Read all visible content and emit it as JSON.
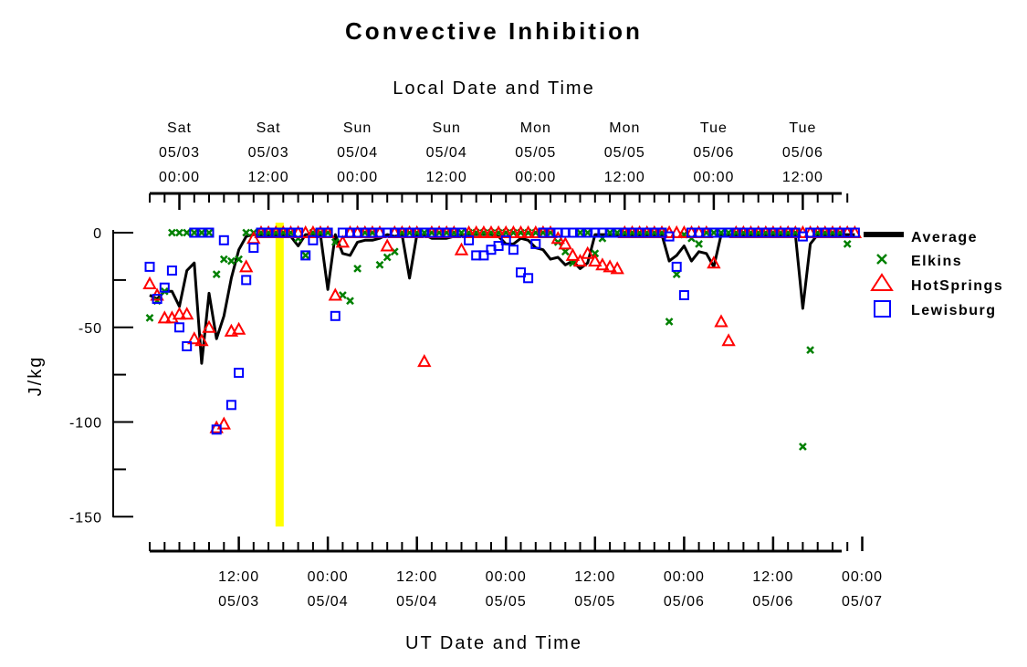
{
  "chart_data": {
    "type": "scatter",
    "title": "Convective Inhibition",
    "top_axis_label": "Local Date and Time",
    "xlabel": "UT Date and Time",
    "ylabel": "J/kg",
    "xlim": [
      "05/03 00:00 UT",
      "05/06 23:00 UT"
    ],
    "ylim": [
      -155,
      0
    ],
    "y_ticks": [
      0,
      -50,
      -100,
      -150
    ],
    "y_tick_labels": [
      "0",
      "-50",
      "-100",
      "-150"
    ],
    "x_tick_hours": [
      12,
      24,
      36,
      48,
      60,
      72,
      84,
      96
    ],
    "x_tick_labels": [
      [
        "12:00",
        "05/03"
      ],
      [
        "00:00",
        "05/04"
      ],
      [
        "12:00",
        "05/04"
      ],
      [
        "00:00",
        "05/05"
      ],
      [
        "12:00",
        "05/05"
      ],
      [
        "00:00",
        "05/06"
      ],
      [
        "12:00",
        "05/06"
      ],
      [
        "00:00",
        "05/07"
      ]
    ],
    "top_tick_hours": [
      4,
      16,
      28,
      40,
      52,
      64,
      76,
      88
    ],
    "top_tick_labels": [
      [
        "Sat",
        "05/03",
        "00:00"
      ],
      [
        "Sat",
        "05/03",
        "12:00"
      ],
      [
        "Sun",
        "05/04",
        "00:00"
      ],
      [
        "Sun",
        "05/04",
        "12:00"
      ],
      [
        "Mon",
        "05/05",
        "00:00"
      ],
      [
        "Mon",
        "05/05",
        "12:00"
      ],
      [
        "Tue",
        "05/06",
        "00:00"
      ],
      [
        "Tue",
        "05/06",
        "12:00"
      ]
    ],
    "highlight_hour": 17.5,
    "legend_position": "right",
    "series": [
      {
        "name": "Average",
        "marker": "line",
        "color": "#000000",
        "x": [
          0,
          1,
          2,
          3,
          4,
          5,
          6,
          7,
          8,
          9,
          10,
          11,
          12,
          13,
          14,
          15,
          16,
          17,
          18,
          19,
          20,
          21,
          22,
          23,
          24,
          25,
          26,
          27,
          28,
          29,
          30,
          31,
          32,
          33,
          34,
          35,
          36,
          37,
          38,
          39,
          40,
          41,
          42,
          43,
          44,
          45,
          46,
          47,
          48,
          49,
          50,
          51,
          52,
          53,
          54,
          55,
          56,
          57,
          58,
          59,
          60,
          61,
          62,
          63,
          64,
          65,
          66,
          67,
          68,
          69,
          70,
          71,
          72,
          73,
          74,
          75,
          76,
          77,
          78,
          79,
          80,
          81,
          82,
          83,
          84,
          85,
          86,
          87,
          88,
          89,
          90,
          91,
          92,
          93,
          94,
          95
        ],
        "y": [
          -33,
          -35,
          -31,
          -31,
          -39,
          -20,
          -16,
          -69,
          -32,
          -56,
          -44,
          -24,
          -9,
          -2,
          -1,
          -1,
          -1,
          -1,
          -1,
          -2,
          -7,
          -1,
          -1,
          -1,
          -30,
          -1,
          -11,
          -12,
          -5,
          -4,
          -4,
          -3,
          -1,
          -2,
          -1,
          -24,
          -1,
          -1,
          -3,
          -3,
          -3,
          -2,
          -1,
          -1,
          -1,
          -1,
          -1,
          -2,
          -6,
          -6,
          -3,
          -4,
          -8,
          -9,
          -14,
          -13,
          -17,
          -15,
          -19,
          -16,
          -1,
          -1,
          -1,
          -1,
          -1,
          -1,
          -1,
          -1,
          -1,
          -1,
          -15,
          -12,
          -7,
          -15,
          -10,
          -11,
          -18,
          -1,
          -1,
          -1,
          -1,
          -1,
          -1,
          -1,
          -1,
          -1,
          -1,
          -1,
          -40,
          -6,
          -1,
          -1,
          -1,
          -1,
          -1,
          -1
        ]
      },
      {
        "name": "Elkins",
        "marker": "x",
        "color": "#008000",
        "x": [
          0,
          1,
          2,
          3,
          4,
          5,
          6,
          7,
          8,
          9,
          10,
          11,
          12,
          13,
          14,
          15,
          16,
          17,
          18,
          19,
          20,
          21,
          22,
          23,
          24,
          25,
          26,
          27,
          28,
          29,
          30,
          31,
          32,
          33,
          34,
          35,
          36,
          37,
          38,
          39,
          40,
          41,
          42,
          43,
          44,
          45,
          46,
          47,
          48,
          49,
          50,
          51,
          52,
          53,
          54,
          55,
          56,
          57,
          58,
          59,
          60,
          61,
          62,
          63,
          64,
          65,
          66,
          67,
          68,
          69,
          70,
          71,
          72,
          73,
          74,
          75,
          76,
          77,
          78,
          79,
          80,
          81,
          82,
          83,
          84,
          85,
          86,
          87,
          88,
          89,
          90,
          91,
          92,
          93,
          94
        ],
        "y": [
          -45,
          -36,
          -31,
          0,
          0,
          0,
          0,
          0,
          0,
          -22,
          -14,
          -15,
          -14,
          0,
          0,
          0,
          0,
          0,
          0,
          0,
          -3,
          -12,
          0,
          0,
          0,
          -5,
          -33,
          -36,
          -19,
          0,
          0,
          -17,
          -13,
          -10,
          0,
          0,
          0,
          0,
          0,
          0,
          0,
          0,
          0,
          0,
          0,
          0,
          0,
          0,
          0,
          0,
          0,
          0,
          0,
          0,
          0,
          -5,
          -10,
          -16,
          0,
          0,
          -11,
          -3,
          0,
          0,
          0,
          0,
          0,
          0,
          0,
          0,
          -47,
          -22,
          -1,
          -3,
          -6,
          0,
          0,
          0,
          0,
          0,
          0,
          0,
          0,
          0,
          0,
          0,
          0,
          0,
          -113,
          -62,
          0,
          0,
          0,
          0,
          -6
        ]
      },
      {
        "name": "HotSprings",
        "marker": "triangle",
        "color": "#ff0000",
        "x": [
          0,
          1,
          2,
          3,
          4,
          5,
          6,
          7,
          8,
          9,
          10,
          11,
          12,
          13,
          14,
          15,
          16,
          17,
          18,
          19,
          20,
          21,
          22,
          23,
          24,
          25,
          26,
          27,
          28,
          29,
          30,
          31,
          32,
          33,
          34,
          35,
          36,
          37,
          38,
          39,
          40,
          41,
          42,
          43,
          44,
          45,
          46,
          47,
          48,
          49,
          50,
          51,
          52,
          53,
          54,
          55,
          56,
          57,
          58,
          59,
          60,
          61,
          62,
          63,
          64,
          65,
          66,
          67,
          68,
          69,
          70,
          71,
          72,
          73,
          74,
          75,
          76,
          77,
          78,
          79,
          80,
          81,
          82,
          83,
          84,
          85,
          86,
          87,
          88,
          89,
          90,
          91,
          92,
          93,
          94,
          95
        ],
        "y": [
          -27,
          -33,
          -45,
          -45,
          -43,
          -43,
          -56,
          -57,
          -50,
          -103,
          -101,
          -52,
          -51,
          -18,
          -3,
          0,
          0,
          0,
          0,
          0,
          0,
          0,
          0,
          0,
          0,
          -33,
          -5,
          0,
          0,
          0,
          0,
          0,
          -7,
          0,
          0,
          0,
          0,
          -68,
          0,
          0,
          0,
          0,
          -9,
          0,
          0,
          0,
          0,
          0,
          0,
          0,
          0,
          0,
          0,
          0,
          0,
          -3,
          -6,
          -12,
          -15,
          -11,
          -15,
          -17,
          -18,
          -19,
          0,
          0,
          0,
          0,
          0,
          0,
          0,
          0,
          0,
          0,
          0,
          0,
          -16,
          -47,
          -57,
          0,
          0,
          0,
          0,
          0,
          0,
          0,
          0,
          0,
          0,
          0,
          0,
          0,
          0,
          0,
          0,
          0
        ]
      },
      {
        "name": "Lewisburg",
        "marker": "square",
        "color": "#0000ff",
        "x": [
          0,
          1,
          2,
          3,
          4,
          5,
          6,
          7,
          8,
          9,
          10,
          11,
          12,
          13,
          14,
          15,
          16,
          17,
          18,
          19,
          20,
          21,
          22,
          23,
          24,
          25,
          26,
          27,
          28,
          29,
          30,
          31,
          32,
          33,
          34,
          35,
          36,
          37,
          38,
          39,
          40,
          41,
          42,
          43,
          44,
          45,
          46,
          47,
          48,
          49,
          50,
          51,
          52,
          53,
          54,
          55,
          56,
          57,
          58,
          59,
          60,
          61,
          62,
          63,
          64,
          65,
          66,
          67,
          68,
          69,
          70,
          71,
          72,
          73,
          74,
          75,
          76,
          77,
          78,
          79,
          80,
          81,
          82,
          83,
          84,
          85,
          86,
          87,
          88,
          89,
          90,
          91,
          92,
          93,
          94,
          95
        ],
        "y": [
          -18,
          -35,
          -29,
          -20,
          -50,
          -60,
          0,
          0,
          0,
          -104,
          -4,
          -91,
          -74,
          -25,
          -8,
          0,
          0,
          0,
          0,
          0,
          0,
          -12,
          -4,
          0,
          0,
          -44,
          0,
          0,
          0,
          0,
          0,
          0,
          0,
          0,
          0,
          0,
          0,
          0,
          0,
          0,
          0,
          0,
          0,
          -4,
          -12,
          -12,
          -9,
          -7,
          -4,
          -9,
          -21,
          -24,
          -6,
          0,
          0,
          0,
          0,
          0,
          0,
          0,
          0,
          0,
          0,
          0,
          0,
          0,
          0,
          0,
          0,
          0,
          -2,
          -18,
          -33,
          0,
          0,
          0,
          0,
          0,
          0,
          0,
          0,
          0,
          0,
          0,
          0,
          0,
          0,
          0,
          -2,
          0,
          0,
          0,
          0,
          0,
          0,
          0
        ]
      }
    ]
  }
}
